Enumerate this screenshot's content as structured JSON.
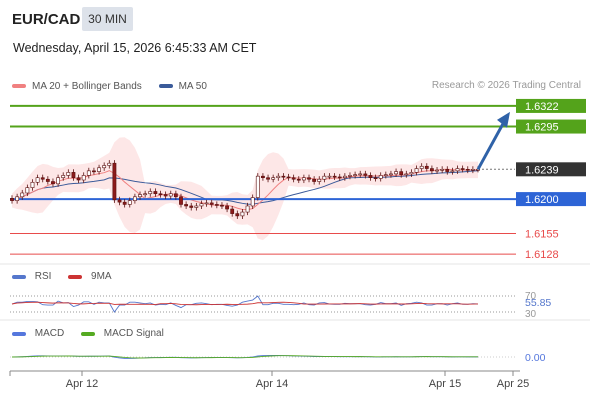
{
  "header": {
    "symbol": "EUR/CAD",
    "timeframe": "30 MIN",
    "datetime": "Wednesday, April 15, 2026 6:45:33 AM CET"
  },
  "legend": {
    "ma20_label": "MA 20 + Bollinger Bands",
    "ma50_label": "MA 50",
    "credit": "Research © 2026 Trading Central"
  },
  "rsi_legend": {
    "rsi": "RSI",
    "ma": "9MA"
  },
  "macd_legend": {
    "macd": "MACD",
    "signal": "MACD Signal"
  },
  "colors": {
    "green_level": "#54a31b",
    "blue_level": "#2d64d6",
    "red_level": "#e84b4b",
    "price_label_bg": "#333333",
    "ma20": "#f08080",
    "ma50": "#3b5b9a",
    "bollinger_fill": "#fde3e3",
    "candle_up": "#ffffff",
    "candle_down": "#8b1a1a",
    "arrow": "#2f62a8",
    "rsi": "#5577cc",
    "rsi_ma": "#cc3333",
    "macd": "#5577dd",
    "macd_signal": "#55aa22"
  },
  "chart_data": [
    {
      "type": "candlestick",
      "title": "EUR/CAD 30 MIN",
      "ylim": [
        1.6115,
        1.6335
      ],
      "x_ticks": [
        "Apr 12",
        "Apr 14",
        "Apr 15",
        "Apr 25"
      ],
      "levels": [
        {
          "value": "1.6322",
          "kind": "resistance",
          "color": "green"
        },
        {
          "value": "1.6295",
          "kind": "resistance",
          "color": "green"
        },
        {
          "value": "1.6239",
          "kind": "last_price",
          "color": "dark"
        },
        {
          "value": "1.6200",
          "kind": "pivot",
          "color": "blue"
        },
        {
          "value": "1.6155",
          "kind": "support",
          "color": "red"
        },
        {
          "value": "1.6128",
          "kind": "support",
          "color": "red"
        }
      ],
      "close_path": [
        1.6198,
        1.6203,
        1.6208,
        1.6215,
        1.6222,
        1.6228,
        1.6226,
        1.6223,
        1.622,
        1.6228,
        1.6231,
        1.6235,
        1.6228,
        1.6225,
        1.6231,
        1.6237,
        1.6236,
        1.6241,
        1.6244,
        1.6247,
        1.6199,
        1.6196,
        1.6193,
        1.6198,
        1.6203,
        1.6206,
        1.6207,
        1.621,
        1.6207,
        1.6206,
        1.6204,
        1.6207,
        1.6203,
        1.6193,
        1.6191,
        1.6189,
        1.6191,
        1.6194,
        1.6195,
        1.6193,
        1.6192,
        1.6191,
        1.6187,
        1.6181,
        1.6178,
        1.6183,
        1.6191,
        1.6202,
        1.623,
        1.6228,
        1.6226,
        1.6228,
        1.623,
        1.6229,
        1.6228,
        1.6226,
        1.6225,
        1.6228,
        1.6226,
        1.6223,
        1.6226,
        1.623,
        1.623,
        1.6229,
        1.6228,
        1.623,
        1.6231,
        1.6232,
        1.6233,
        1.6231,
        1.6228,
        1.6227,
        1.6231,
        1.6232,
        1.6233,
        1.6236,
        1.6232,
        1.6233,
        1.6235,
        1.624,
        1.6243,
        1.624,
        1.6237,
        1.6238,
        1.6239,
        1.6236,
        1.6237,
        1.624,
        1.6239,
        1.6238,
        1.6239,
        1.6239
      ],
      "forecast_target": "1.6322"
    },
    {
      "type": "line",
      "title": "RSI",
      "series": [
        {
          "name": "RSI"
        },
        {
          "name": "9MA"
        }
      ],
      "ylim": [
        30,
        70
      ],
      "ticks": [
        "70",
        "30"
      ],
      "last_value": "55.85"
    },
    {
      "type": "line",
      "title": "MACD",
      "series": [
        {
          "name": "MACD"
        },
        {
          "name": "MACD Signal"
        }
      ],
      "ticks": [
        "0.00"
      ]
    }
  ]
}
